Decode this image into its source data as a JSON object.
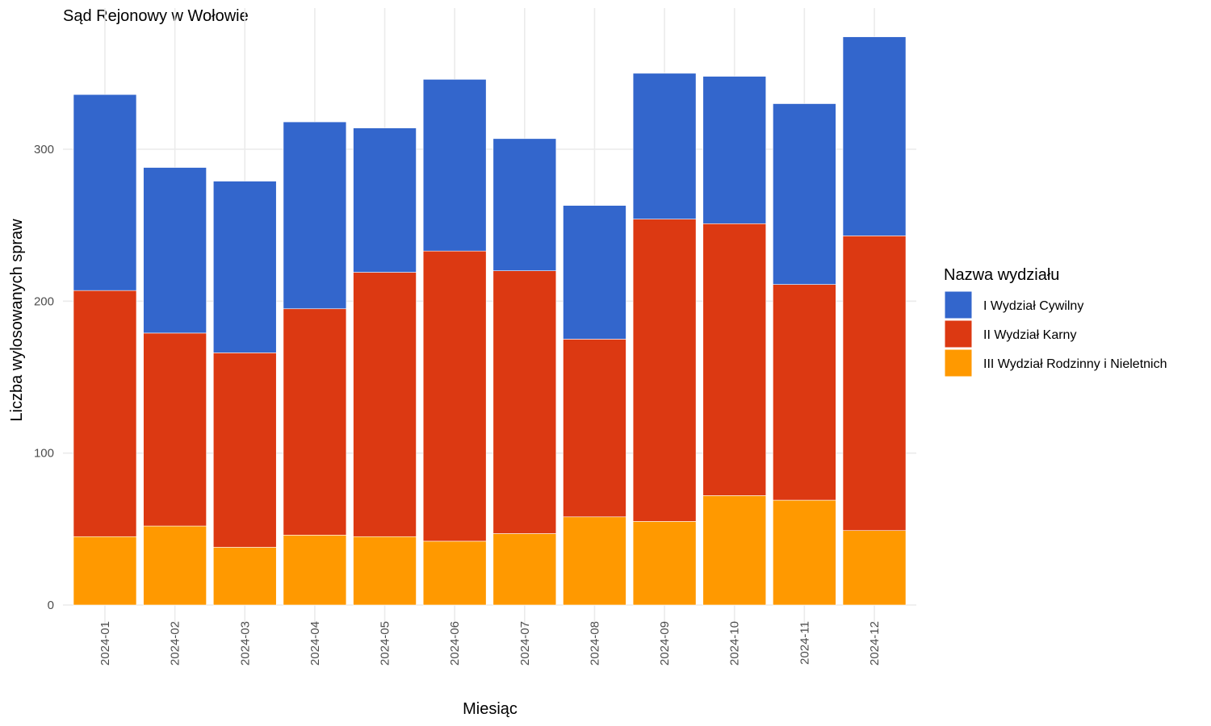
{
  "chart_data": {
    "type": "bar",
    "stacked": true,
    "title": "Sąd Rejonowy w Wołowie",
    "xlabel": "Miesiąc",
    "ylabel": "Liczba wylosowanych spraw",
    "ylim": [
      0,
      390
    ],
    "yticks": [
      0,
      100,
      200,
      300
    ],
    "grid": true,
    "legend_position": "right",
    "legend_title": "Nazwa wydziału",
    "categories": [
      "2024-01",
      "2024-02",
      "2024-03",
      "2024-04",
      "2024-05",
      "2024-06",
      "2024-07",
      "2024-08",
      "2024-09",
      "2024-10",
      "2024-11",
      "2024-12"
    ],
    "series": [
      {
        "name": "III Wydział Rodzinny i Nieletnich",
        "color": "#FF9900",
        "values": [
          45,
          52,
          38,
          46,
          45,
          42,
          47,
          58,
          55,
          72,
          69,
          49
        ]
      },
      {
        "name": "II Wydział Karny",
        "color": "#DC3912",
        "values": [
          162,
          127,
          128,
          149,
          174,
          191,
          173,
          117,
          199,
          179,
          142,
          194
        ]
      },
      {
        "name": "I Wydział Cywilny",
        "color": "#3366CC",
        "values": [
          129,
          109,
          113,
          123,
          95,
          113,
          87,
          88,
          96,
          97,
          119,
          131
        ]
      }
    ],
    "legend_order": [
      "I Wydział Cywilny",
      "II Wydział Karny",
      "III Wydział Rodzinny i Nieletnich"
    ]
  }
}
